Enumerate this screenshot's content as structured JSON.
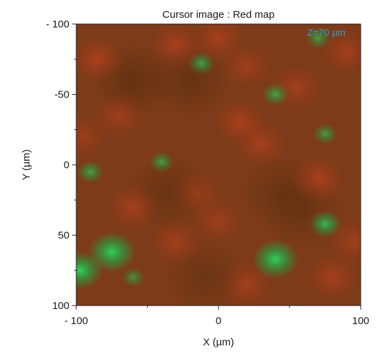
{
  "chart_data": {
    "type": "heatmap",
    "title": "Cursor image : Red map",
    "xlabel": "X (µm)",
    "ylabel": "Y (µm)",
    "xlim": [
      -100,
      100
    ],
    "ylim": [
      -100,
      100
    ],
    "x_ticks": [
      -100,
      0,
      100
    ],
    "y_ticks": [
      -100,
      -50,
      0,
      50,
      100
    ],
    "x_tick_labels": [
      "- 100",
      "0",
      "100"
    ],
    "y_tick_labels": [
      "- 100",
      "-50",
      "0",
      "50",
      "100"
    ],
    "annotation": {
      "text": "Z=70 µm",
      "color": "#2b9fd6",
      "placement": "top-right"
    },
    "colormap": [
      "#5a3a14",
      "#c8401e",
      "#1fb04a"
    ],
    "green_hotspots": [
      {
        "x": -75,
        "y": 62,
        "intensity": 0.95
      },
      {
        "x": -97,
        "y": 75,
        "intensity": 0.85
      },
      {
        "x": 40,
        "y": 67,
        "intensity": 0.9
      },
      {
        "x": 75,
        "y": 42,
        "intensity": 0.5
      },
      {
        "x": 40,
        "y": -50,
        "intensity": 0.35
      },
      {
        "x": 70,
        "y": -90,
        "intensity": 0.3
      },
      {
        "x": -12,
        "y": -72,
        "intensity": 0.35
      },
      {
        "x": -90,
        "y": 5,
        "intensity": 0.35
      },
      {
        "x": -40,
        "y": -2,
        "intensity": 0.3
      },
      {
        "x": 75,
        "y": -22,
        "intensity": 0.3
      },
      {
        "x": -60,
        "y": 80,
        "intensity": 0.25
      }
    ],
    "red_hotspots": [
      {
        "x": -85,
        "y": -75,
        "intensity": 0.6
      },
      {
        "x": -30,
        "y": -85,
        "intensity": 0.55
      },
      {
        "x": 0,
        "y": -90,
        "intensity": 0.55
      },
      {
        "x": 20,
        "y": -70,
        "intensity": 0.45
      },
      {
        "x": 55,
        "y": -55,
        "intensity": 0.5
      },
      {
        "x": 90,
        "y": -80,
        "intensity": 0.5
      },
      {
        "x": -70,
        "y": -35,
        "intensity": 0.45
      },
      {
        "x": 15,
        "y": -30,
        "intensity": 0.6
      },
      {
        "x": 30,
        "y": -15,
        "intensity": 0.55
      },
      {
        "x": 70,
        "y": 10,
        "intensity": 0.6
      },
      {
        "x": -60,
        "y": 30,
        "intensity": 0.55
      },
      {
        "x": -30,
        "y": 55,
        "intensity": 0.5
      },
      {
        "x": 0,
        "y": 40,
        "intensity": 0.45
      },
      {
        "x": 20,
        "y": 85,
        "intensity": 0.5
      },
      {
        "x": 80,
        "y": 80,
        "intensity": 0.55
      },
      {
        "x": -95,
        "y": -20,
        "intensity": 0.4
      },
      {
        "x": -15,
        "y": 20,
        "intensity": 0.4
      },
      {
        "x": 95,
        "y": 55,
        "intensity": 0.45
      }
    ],
    "dark_spots": [
      {
        "x": -60,
        "y": -60,
        "intensity": 0.5
      },
      {
        "x": -20,
        "y": -60,
        "intensity": 0.45
      },
      {
        "x": -35,
        "y": 20,
        "intensity": 0.4
      },
      {
        "x": 45,
        "y": 20,
        "intensity": 0.4
      },
      {
        "x": -10,
        "y": 80,
        "intensity": 0.35
      },
      {
        "x": 60,
        "y": 35,
        "intensity": 0.35
      }
    ]
  }
}
